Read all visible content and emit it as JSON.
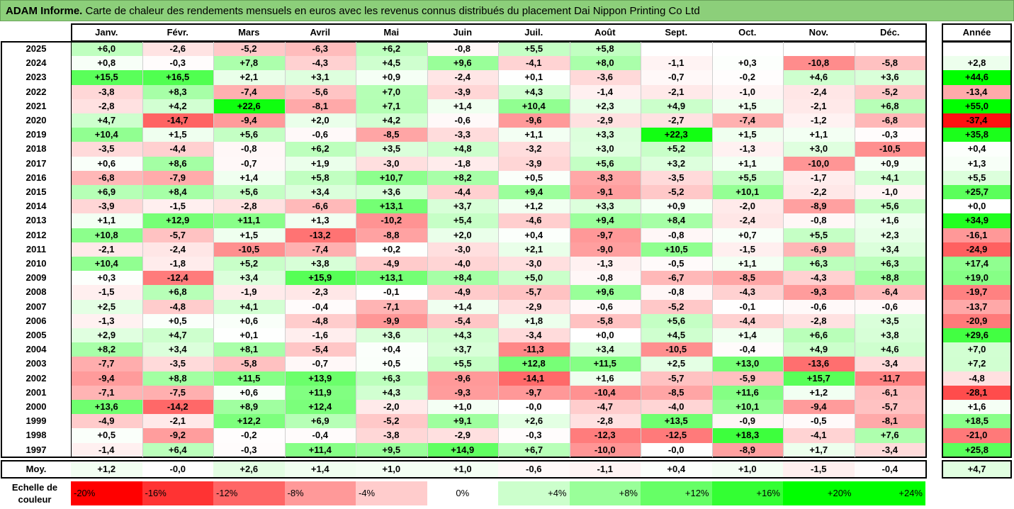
{
  "title": {
    "bold": "ADAM Informe.",
    "rest": " Carte de chaleur des rendements mensuels en euros avec les revenus connus distribués du placement Dai Nippon Printing Co Ltd"
  },
  "scale_label": "Echelle de couleur",
  "colors": {
    "title_bar": "#8ccf7a",
    "negative_max": "#ff0000",
    "positive_max": "#00ff00",
    "neutral": "#ffffff"
  },
  "chart_data": {
    "type": "heatmap",
    "title": "ADAM Informe. Carte de chaleur des rendements mensuels en euros avec les revenus connus distribués du placement Dai Nippon Printing Co Ltd",
    "columns": [
      "Janv.",
      "Févr.",
      "Mars",
      "Avril",
      "Mai",
      "Juin",
      "Juil.",
      "Août",
      "Sept.",
      "Oct.",
      "Nov.",
      "Déc."
    ],
    "year_header": "Année",
    "rows": [
      {
        "year": "2025",
        "values": [
          6.0,
          -2.6,
          -5.2,
          -6.3,
          6.2,
          -0.8,
          5.5,
          5.8,
          null,
          null,
          null,
          null
        ],
        "labels": [
          "+6,0",
          "-2,6",
          "-5,2",
          "-6,3",
          "+6,2",
          "-0,8",
          "+5,5",
          "+5,8",
          "",
          "",
          "",
          ""
        ],
        "annual": null,
        "annual_label": ""
      },
      {
        "year": "2024",
        "values": [
          0.8,
          -0.3,
          7.8,
          -4.3,
          4.5,
          9.6,
          -4.1,
          8.0,
          -1.1,
          0.3,
          -10.8,
          -5.8
        ],
        "labels": [
          "+0,8",
          "-0,3",
          "+7,8",
          "-4,3",
          "+4,5",
          "+9,6",
          "-4,1",
          "+8,0",
          "-1,1",
          "+0,3",
          "-10,8",
          "-5,8"
        ],
        "annual": 2.8,
        "annual_label": "+2,8"
      },
      {
        "year": "2023",
        "values": [
          15.5,
          16.5,
          2.1,
          3.1,
          0.9,
          -2.4,
          0.1,
          -3.6,
          -0.7,
          -0.2,
          4.6,
          3.6
        ],
        "labels": [
          "+15,5",
          "+16,5",
          "+2,1",
          "+3,1",
          "+0,9",
          "-2,4",
          "+0,1",
          "-3,6",
          "-0,7",
          "-0,2",
          "+4,6",
          "+3,6"
        ],
        "annual": 44.6,
        "annual_label": "+44,6"
      },
      {
        "year": "2022",
        "values": [
          -3.8,
          8.3,
          -7.4,
          -5.6,
          7.0,
          -3.9,
          4.3,
          -1.4,
          -2.1,
          -1.0,
          -2.4,
          -5.2
        ],
        "labels": [
          "-3,8",
          "+8,3",
          "-7,4",
          "-5,6",
          "+7,0",
          "-3,9",
          "+4,3",
          "-1,4",
          "-2,1",
          "-1,0",
          "-2,4",
          "-5,2"
        ],
        "annual": -13.4,
        "annual_label": "-13,4"
      },
      {
        "year": "2021",
        "values": [
          -2.8,
          4.2,
          22.6,
          -8.1,
          7.1,
          1.4,
          10.4,
          2.3,
          4.9,
          1.5,
          -2.1,
          6.8
        ],
        "labels": [
          "-2,8",
          "+4,2",
          "+22,6",
          "-8,1",
          "+7,1",
          "+1,4",
          "+10,4",
          "+2,3",
          "+4,9",
          "+1,5",
          "-2,1",
          "+6,8"
        ],
        "annual": 55.0,
        "annual_label": "+55,0"
      },
      {
        "year": "2020",
        "values": [
          4.7,
          -14.7,
          -9.4,
          2.0,
          4.2,
          -0.6,
          -9.6,
          -2.9,
          -2.7,
          -7.4,
          -1.2,
          -6.8
        ],
        "labels": [
          "+4,7",
          "-14,7",
          "-9,4",
          "+2,0",
          "+4,2",
          "-0,6",
          "-9,6",
          "-2,9",
          "-2,7",
          "-7,4",
          "-1,2",
          "-6,8"
        ],
        "annual": -37.4,
        "annual_label": "-37,4"
      },
      {
        "year": "2019",
        "values": [
          10.4,
          1.5,
          5.6,
          -0.6,
          -8.5,
          -3.3,
          1.1,
          3.3,
          22.3,
          1.5,
          1.1,
          -0.3
        ],
        "labels": [
          "+10,4",
          "+1,5",
          "+5,6",
          "-0,6",
          "-8,5",
          "-3,3",
          "+1,1",
          "+3,3",
          "+22,3",
          "+1,5",
          "+1,1",
          "-0,3"
        ],
        "annual": 35.8,
        "annual_label": "+35,8"
      },
      {
        "year": "2018",
        "values": [
          -3.5,
          -4.4,
          -0.8,
          6.2,
          3.5,
          4.8,
          -3.2,
          3.0,
          5.2,
          -1.3,
          3.0,
          -10.5
        ],
        "labels": [
          "-3,5",
          "-4,4",
          "-0,8",
          "+6,2",
          "+3,5",
          "+4,8",
          "-3,2",
          "+3,0",
          "+5,2",
          "-1,3",
          "+3,0",
          "-10,5"
        ],
        "annual": 0.4,
        "annual_label": "+0,4"
      },
      {
        "year": "2017",
        "values": [
          0.6,
          8.6,
          -0.7,
          1.9,
          -3.0,
          -1.8,
          -3.9,
          5.6,
          3.2,
          1.1,
          -10.0,
          0.9
        ],
        "labels": [
          "+0,6",
          "+8,6",
          "-0,7",
          "+1,9",
          "-3,0",
          "-1,8",
          "-3,9",
          "+5,6",
          "+3,2",
          "+1,1",
          "-10,0",
          "+0,9"
        ],
        "annual": 1.3,
        "annual_label": "+1,3"
      },
      {
        "year": "2016",
        "values": [
          -6.8,
          -7.9,
          1.4,
          5.8,
          10.7,
          8.2,
          0.5,
          -8.3,
          -3.5,
          5.5,
          -1.7,
          4.1
        ],
        "labels": [
          "-6,8",
          "-7,9",
          "+1,4",
          "+5,8",
          "+10,7",
          "+8,2",
          "+0,5",
          "-8,3",
          "-3,5",
          "+5,5",
          "-1,7",
          "+4,1"
        ],
        "annual": 5.5,
        "annual_label": "+5,5"
      },
      {
        "year": "2015",
        "values": [
          6.9,
          8.4,
          5.6,
          3.4,
          3.6,
          -4.4,
          9.4,
          -9.1,
          -5.2,
          10.1,
          -2.2,
          -1.0
        ],
        "labels": [
          "+6,9",
          "+8,4",
          "+5,6",
          "+3,4",
          "+3,6",
          "-4,4",
          "+9,4",
          "-9,1",
          "-5,2",
          "+10,1",
          "-2,2",
          "-1,0"
        ],
        "annual": 25.7,
        "annual_label": "+25,7"
      },
      {
        "year": "2014",
        "values": [
          -3.9,
          -1.5,
          -2.8,
          -6.6,
          13.1,
          3.7,
          1.2,
          3.3,
          0.9,
          -2.0,
          -8.9,
          5.6
        ],
        "labels": [
          "-3,9",
          "-1,5",
          "-2,8",
          "-6,6",
          "+13,1",
          "+3,7",
          "+1,2",
          "+3,3",
          "+0,9",
          "-2,0",
          "-8,9",
          "+5,6"
        ],
        "annual": 0.0,
        "annual_label": "+0,0"
      },
      {
        "year": "2013",
        "values": [
          1.1,
          12.9,
          11.1,
          1.3,
          -10.2,
          5.4,
          -4.6,
          9.4,
          8.4,
          -2.4,
          -0.8,
          1.6
        ],
        "labels": [
          "+1,1",
          "+12,9",
          "+11,1",
          "+1,3",
          "-10,2",
          "+5,4",
          "-4,6",
          "+9,4",
          "+8,4",
          "-2,4",
          "-0,8",
          "+1,6"
        ],
        "annual": 34.9,
        "annual_label": "+34,9"
      },
      {
        "year": "2012",
        "values": [
          10.8,
          -5.7,
          1.5,
          -13.2,
          -8.8,
          2.0,
          0.4,
          -9.7,
          -0.8,
          0.7,
          5.5,
          2.3
        ],
        "labels": [
          "+10,8",
          "-5,7",
          "+1,5",
          "-13,2",
          "-8,8",
          "+2,0",
          "+0,4",
          "-9,7",
          "-0,8",
          "+0,7",
          "+5,5",
          "+2,3"
        ],
        "annual": -16.1,
        "annual_label": "-16,1"
      },
      {
        "year": "2011",
        "values": [
          -2.1,
          -2.4,
          -10.5,
          -7.4,
          0.2,
          -3.0,
          2.1,
          -9.0,
          10.5,
          -1.5,
          -6.9,
          3.4
        ],
        "labels": [
          "-2,1",
          "-2,4",
          "-10,5",
          "-7,4",
          "+0,2",
          "-3,0",
          "+2,1",
          "-9,0",
          "+10,5",
          "-1,5",
          "-6,9",
          "+3,4"
        ],
        "annual": -24.9,
        "annual_label": "-24,9"
      },
      {
        "year": "2010",
        "values": [
          10.4,
          -1.8,
          5.2,
          3.8,
          -4.9,
          -4.0,
          -3.0,
          -1.3,
          -0.5,
          1.1,
          6.3,
          6.3
        ],
        "labels": [
          "+10,4",
          "-1,8",
          "+5,2",
          "+3,8",
          "-4,9",
          "-4,0",
          "-3,0",
          "-1,3",
          "-0,5",
          "+1,1",
          "+6,3",
          "+6,3"
        ],
        "annual": 17.4,
        "annual_label": "+17,4"
      },
      {
        "year": "2009",
        "values": [
          0.3,
          -12.4,
          3.4,
          15.9,
          13.1,
          8.4,
          5.0,
          -0.8,
          -6.7,
          -8.5,
          -4.3,
          8.8
        ],
        "labels": [
          "+0,3",
          "-12,4",
          "+3,4",
          "+15,9",
          "+13,1",
          "+8,4",
          "+5,0",
          "-0,8",
          "-6,7",
          "-8,5",
          "-4,3",
          "+8,8"
        ],
        "annual": 19.0,
        "annual_label": "+19,0"
      },
      {
        "year": "2008",
        "values": [
          -1.5,
          6.8,
          -1.9,
          -2.3,
          -0.1,
          -4.9,
          -5.7,
          9.6,
          -0.8,
          -4.3,
          -9.3,
          -6.4
        ],
        "labels": [
          "-1,5",
          "+6,8",
          "-1,9",
          "-2,3",
          "-0,1",
          "-4,9",
          "-5,7",
          "+9,6",
          "-0,8",
          "-4,3",
          "-9,3",
          "-6,4"
        ],
        "annual": -19.7,
        "annual_label": "-19,7"
      },
      {
        "year": "2007",
        "values": [
          2.5,
          -4.8,
          4.1,
          -0.4,
          -7.1,
          1.4,
          -2.9,
          -0.6,
          -5.2,
          -0.1,
          -0.6,
          -0.6
        ],
        "labels": [
          "+2,5",
          "-4,8",
          "+4,1",
          "-0,4",
          "-7,1",
          "+1,4",
          "-2,9",
          "-0,6",
          "-5,2",
          "-0,1",
          "-0,6",
          "-0,6"
        ],
        "annual": -13.7,
        "annual_label": "-13,7"
      },
      {
        "year": "2006",
        "values": [
          -1.3,
          0.5,
          0.6,
          -4.8,
          -9.9,
          -5.4,
          1.8,
          -5.8,
          5.6,
          -4.4,
          -2.8,
          3.5
        ],
        "labels": [
          "-1,3",
          "+0,5",
          "+0,6",
          "-4,8",
          "-9,9",
          "-5,4",
          "+1,8",
          "-5,8",
          "+5,6",
          "-4,4",
          "-2,8",
          "+3,5"
        ],
        "annual": -20.9,
        "annual_label": "-20,9"
      },
      {
        "year": "2005",
        "values": [
          2.9,
          4.7,
          0.1,
          -1.6,
          3.6,
          4.3,
          -3.4,
          0.0,
          4.5,
          1.4,
          6.6,
          3.8
        ],
        "labels": [
          "+2,9",
          "+4,7",
          "+0,1",
          "-1,6",
          "+3,6",
          "+4,3",
          "-3,4",
          "+0,0",
          "+4,5",
          "+1,4",
          "+6,6",
          "+3,8"
        ],
        "annual": 29.6,
        "annual_label": "+29,6"
      },
      {
        "year": "2004",
        "values": [
          8.2,
          3.4,
          8.1,
          -5.4,
          0.4,
          3.7,
          -11.3,
          3.4,
          -10.5,
          -0.4,
          4.9,
          4.6
        ],
        "labels": [
          "+8,2",
          "+3,4",
          "+8,1",
          "-5,4",
          "+0,4",
          "+3,7",
          "-11,3",
          "+3,4",
          "-10,5",
          "-0,4",
          "+4,9",
          "+4,6"
        ],
        "annual": 7.0,
        "annual_label": "+7,0"
      },
      {
        "year": "2003",
        "values": [
          -7.7,
          -3.5,
          -5.8,
          -0.7,
          0.5,
          5.5,
          12.8,
          11.5,
          2.5,
          13.0,
          -13.6,
          -3.4
        ],
        "labels": [
          "-7,7",
          "-3,5",
          "-5,8",
          "-0,7",
          "+0,5",
          "+5,5",
          "+12,8",
          "+11,5",
          "+2,5",
          "+13,0",
          "-13,6",
          "-3,4"
        ],
        "annual": 7.2,
        "annual_label": "+7,2"
      },
      {
        "year": "2002",
        "values": [
          -9.4,
          8.8,
          11.5,
          13.9,
          6.3,
          -9.6,
          -14.1,
          1.6,
          -5.7,
          -5.9,
          15.7,
          -11.7
        ],
        "labels": [
          "-9,4",
          "+8,8",
          "+11,5",
          "+13,9",
          "+6,3",
          "-9,6",
          "-14,1",
          "+1,6",
          "-5,7",
          "-5,9",
          "+15,7",
          "-11,7"
        ],
        "annual": -4.8,
        "annual_label": "-4,8"
      },
      {
        "year": "2001",
        "values": [
          -7.1,
          -7.5,
          0.6,
          11.9,
          4.3,
          -9.3,
          -9.7,
          -10.4,
          -8.5,
          11.6,
          1.2,
          -6.1
        ],
        "labels": [
          "-7,1",
          "-7,5",
          "+0,6",
          "+11,9",
          "+4,3",
          "-9,3",
          "-9,7",
          "-10,4",
          "-8,5",
          "+11,6",
          "+1,2",
          "-6,1"
        ],
        "annual": -28.1,
        "annual_label": "-28,1"
      },
      {
        "year": "2000",
        "values": [
          13.6,
          -14.2,
          8.9,
          12.4,
          -2.0,
          1.0,
          -0.0,
          -4.7,
          -4.0,
          10.1,
          -9.4,
          -5.7
        ],
        "labels": [
          "+13,6",
          "-14,2",
          "+8,9",
          "+12,4",
          "-2,0",
          "+1,0",
          "-0,0",
          "-4,7",
          "-4,0",
          "+10,1",
          "-9,4",
          "-5,7"
        ],
        "annual": 1.6,
        "annual_label": "+1,6"
      },
      {
        "year": "1999",
        "values": [
          -4.9,
          -2.1,
          12.2,
          6.9,
          -5.2,
          9.1,
          2.6,
          -2.8,
          13.5,
          -0.9,
          -0.5,
          -8.1
        ],
        "labels": [
          "-4,9",
          "-2,1",
          "+12,2",
          "+6,9",
          "-5,2",
          "+9,1",
          "+2,6",
          "-2,8",
          "+13,5",
          "-0,9",
          "-0,5",
          "-8,1"
        ],
        "annual": 18.5,
        "annual_label": "+18,5"
      },
      {
        "year": "1998",
        "values": [
          0.5,
          -9.2,
          -0.2,
          -0.4,
          -3.8,
          -2.9,
          -0.3,
          -12.3,
          -12.5,
          18.3,
          -4.1,
          7.6
        ],
        "labels": [
          "+0,5",
          "-9,2",
          "-0,2",
          "-0,4",
          "-3,8",
          "-2,9",
          "-0,3",
          "-12,3",
          "-12,5",
          "+18,3",
          "-4,1",
          "+7,6"
        ],
        "annual": -21.0,
        "annual_label": "-21,0"
      },
      {
        "year": "1997",
        "values": [
          -1.4,
          6.4,
          -0.3,
          11.4,
          9.5,
          14.9,
          6.7,
          -10.0,
          -0.0,
          -8.9,
          1.7,
          -3.4
        ],
        "labels": [
          "-1,4",
          "+6,4",
          "-0,3",
          "+11,4",
          "+9,5",
          "+14,9",
          "+6,7",
          "-10,0",
          "-0,0",
          "-8,9",
          "+1,7",
          "-3,4"
        ],
        "annual": 25.8,
        "annual_label": "+25,8"
      }
    ],
    "average": {
      "label": "Moy.",
      "values": [
        1.2,
        -0.0,
        2.6,
        1.4,
        1.0,
        1.0,
        -0.6,
        -1.1,
        0.4,
        1.0,
        -1.5,
        -0.4
      ],
      "labels": [
        "+1,2",
        "-0,0",
        "+2,6",
        "+1,4",
        "+1,0",
        "+1,0",
        "-0,6",
        "-1,1",
        "+0,4",
        "+1,0",
        "-1,5",
        "-0,4"
      ],
      "annual": 4.7,
      "annual_label": "+4,7"
    },
    "color_scale": {
      "values": [
        -20,
        -16,
        -12,
        -8,
        -4,
        0,
        4,
        8,
        12,
        16,
        20,
        24
      ],
      "labels": [
        "-20%",
        "-16%",
        "-12%",
        "-8%",
        "-4%",
        "0%",
        "+4%",
        "+8%",
        "+12%",
        "+16%",
        "+20%",
        "+24%"
      ]
    },
    "annual_color_range": 40
  }
}
